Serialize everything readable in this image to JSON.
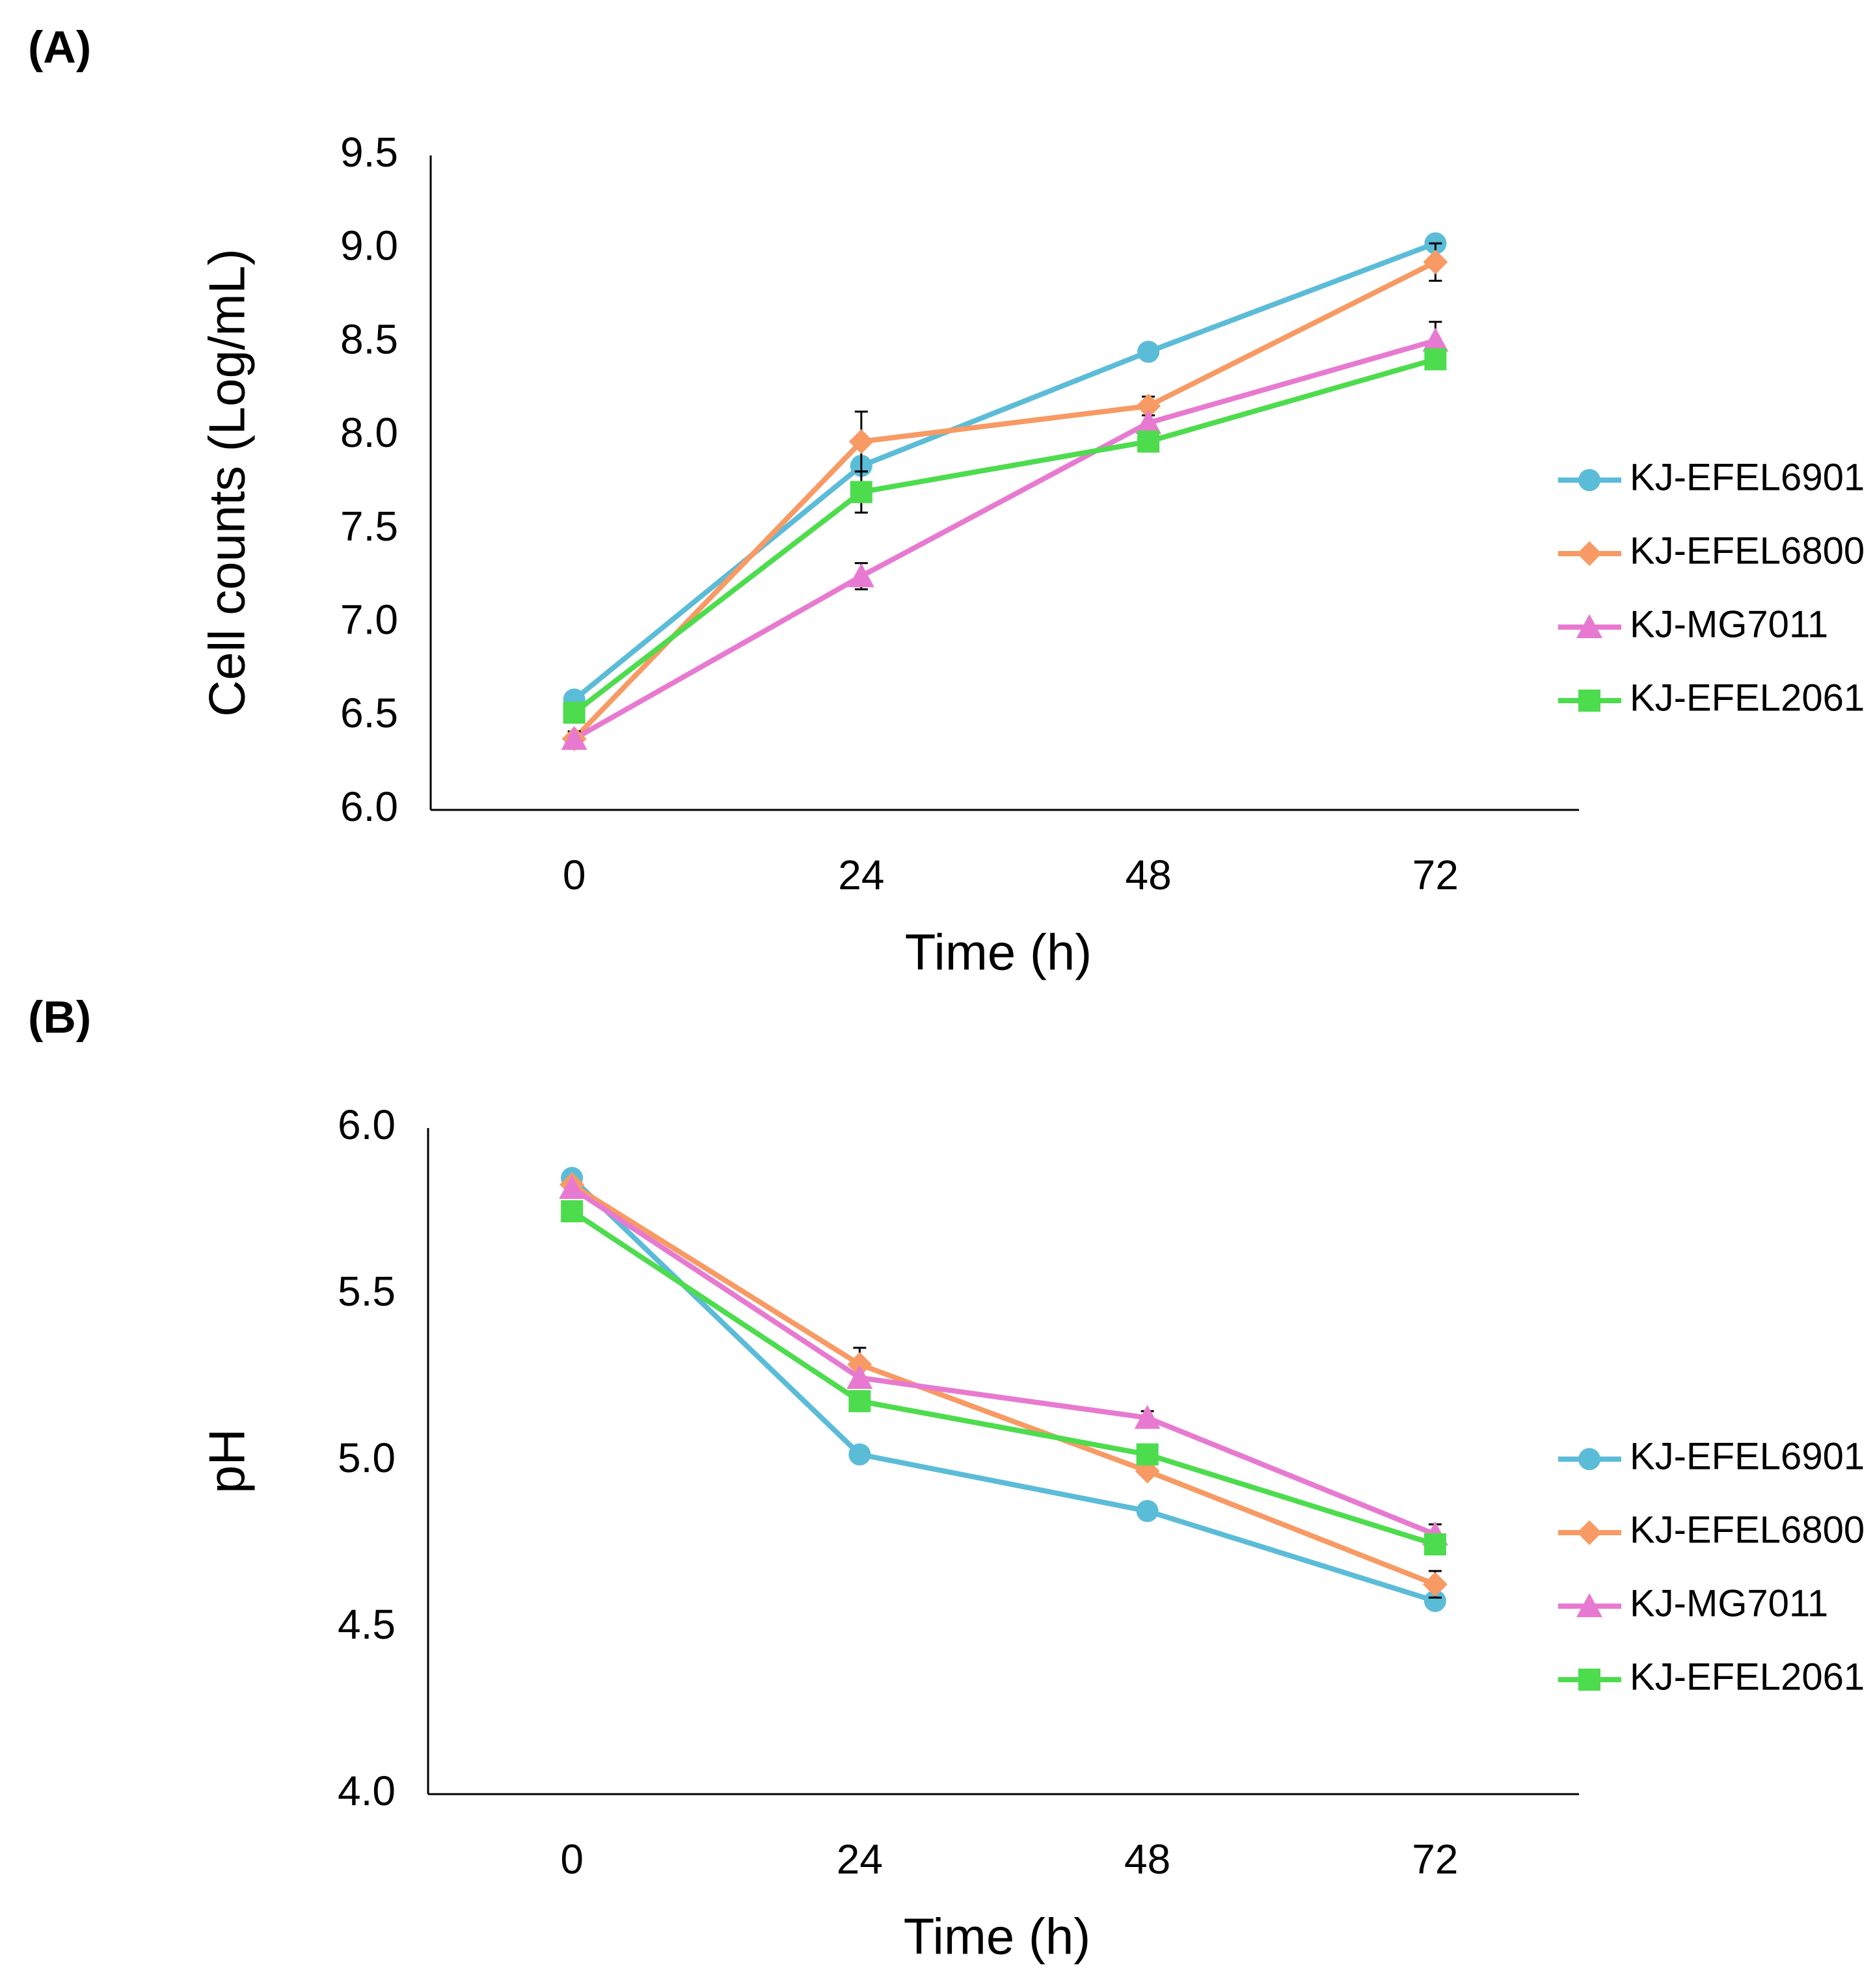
{
  "chart_data": [
    {
      "type": "line",
      "label": "(A)",
      "xlabel": "Time (h)",
      "ylabel": "Cell counts (Log/mL)",
      "categories": [
        "0",
        "24",
        "48",
        "72"
      ],
      "ylim": [
        6,
        9.5
      ],
      "yticks": [
        {
          "value": 6,
          "label": "6.0"
        },
        6.5,
        {
          "value": 7,
          "label": "7.0"
        },
        7.5,
        {
          "value": 8,
          "label": "8.0"
        },
        8.5,
        {
          "value": 9,
          "label": "9.0"
        },
        9.5
      ],
      "series": [
        {
          "name": "KJ-EFEL6901",
          "color": "#5bbcd8",
          "marker": "circle",
          "values": [
            6.59,
            7.84,
            8.45,
            9.03
          ],
          "errors": [
            null,
            null,
            0.04,
            null
          ]
        },
        {
          "name": "KJ-EFEL6800",
          "color": "#f79a64",
          "marker": "diamond",
          "values": [
            6.38,
            7.97,
            8.16,
            8.93
          ],
          "errors": [
            0.04,
            0.16,
            0.05,
            0.1
          ]
        },
        {
          "name": "KJ-MG7011",
          "color": "#e77ad0",
          "marker": "triangle",
          "values": [
            6.38,
            7.25,
            8.07,
            8.51
          ],
          "errors": [
            null,
            0.07,
            null,
            0.1
          ]
        },
        {
          "name": "KJ-EFEL2061",
          "color": "#4ddc4d",
          "marker": "square",
          "values": [
            6.52,
            7.7,
            7.97,
            8.41
          ],
          "errors": [
            null,
            0.11,
            null,
            null
          ]
        }
      ]
    },
    {
      "type": "line",
      "label": "(B)",
      "xlabel": "Time (h)",
      "ylabel": "pH",
      "categories": [
        "0",
        "24",
        "48",
        "72"
      ],
      "ylim": [
        4,
        6
      ],
      "yticks": [
        {
          "value": 4,
          "label": "4.0"
        },
        4.5,
        {
          "value": 5,
          "label": "5.0"
        },
        5.5,
        {
          "value": 6,
          "label": "6.0"
        }
      ],
      "series": [
        {
          "name": "KJ-EFEL6901",
          "color": "#5bbcd8",
          "marker": "circle",
          "values": [
            5.85,
            5.02,
            4.85,
            4.58
          ],
          "errors": [
            null,
            null,
            null,
            null
          ]
        },
        {
          "name": "KJ-EFEL6800",
          "color": "#f79a64",
          "marker": "diamond",
          "values": [
            5.83,
            5.29,
            4.97,
            4.63
          ],
          "errors": [
            null,
            0.05,
            null,
            0.04
          ]
        },
        {
          "name": "KJ-MG7011",
          "color": "#e77ad0",
          "marker": "triangle",
          "values": [
            5.82,
            5.25,
            5.13,
            4.78
          ],
          "errors": [
            null,
            null,
            0.02,
            0.03
          ]
        },
        {
          "name": "KJ-EFEL2061",
          "color": "#4ddc4d",
          "marker": "square",
          "values": [
            5.75,
            5.18,
            5.02,
            4.75
          ],
          "errors": [
            null,
            null,
            null,
            null
          ]
        }
      ]
    }
  ]
}
